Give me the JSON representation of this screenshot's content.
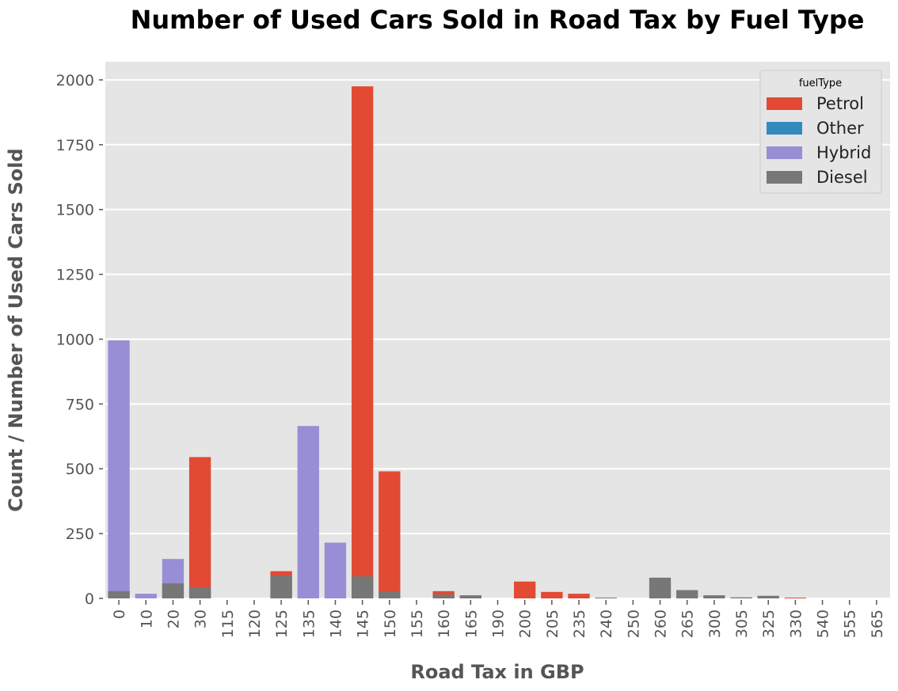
{
  "chart_data": {
    "type": "bar",
    "title": "Number of Used Cars Sold in Road Tax by Fuel Type",
    "xlabel": "Road Tax in GBP",
    "ylabel": "Count / Number of Used Cars Sold",
    "ylim": [
      0,
      2070
    ],
    "yticks": [
      "0",
      "250",
      "500",
      "750",
      "1000",
      "1250",
      "1500",
      "1750",
      "2000"
    ],
    "grid": true,
    "legend_title": "fuelType",
    "legend_position": "top-right",
    "categories": [
      "0",
      "10",
      "20",
      "30",
      "115",
      "120",
      "125",
      "135",
      "140",
      "145",
      "150",
      "155",
      "160",
      "165",
      "190",
      "200",
      "205",
      "235",
      "240",
      "250",
      "260",
      "265",
      "300",
      "305",
      "325",
      "330",
      "540",
      "555",
      "565"
    ],
    "series": [
      {
        "name": "Petrol",
        "color": "#E24A33",
        "values": [
          0,
          0,
          0,
          545,
          0,
          0,
          105,
          0,
          0,
          1975,
          490,
          0,
          28,
          12,
          0,
          65,
          25,
          18,
          0,
          0,
          0,
          0,
          0,
          0,
          0,
          3,
          0,
          0,
          0
        ]
      },
      {
        "name": "Other",
        "color": "#348ABD",
        "values": [
          0,
          0,
          0,
          0,
          0,
          0,
          0,
          0,
          0,
          0,
          0,
          0,
          0,
          0,
          0,
          0,
          0,
          0,
          0,
          0,
          0,
          0,
          0,
          0,
          0,
          0,
          0,
          0,
          0
        ]
      },
      {
        "name": "Hybrid",
        "color": "#988ED5",
        "values": [
          995,
          18,
          152,
          0,
          0,
          0,
          0,
          665,
          215,
          0,
          0,
          0,
          0,
          0,
          0,
          0,
          0,
          0,
          0,
          0,
          0,
          0,
          0,
          0,
          0,
          0,
          0,
          0,
          0
        ]
      },
      {
        "name": "Diesel",
        "color": "#777777",
        "values": [
          28,
          0,
          58,
          42,
          0,
          0,
          88,
          0,
          0,
          85,
          28,
          0,
          15,
          10,
          0,
          0,
          0,
          0,
          3,
          0,
          80,
          32,
          12,
          4,
          10,
          0,
          0,
          0,
          0
        ]
      }
    ]
  }
}
